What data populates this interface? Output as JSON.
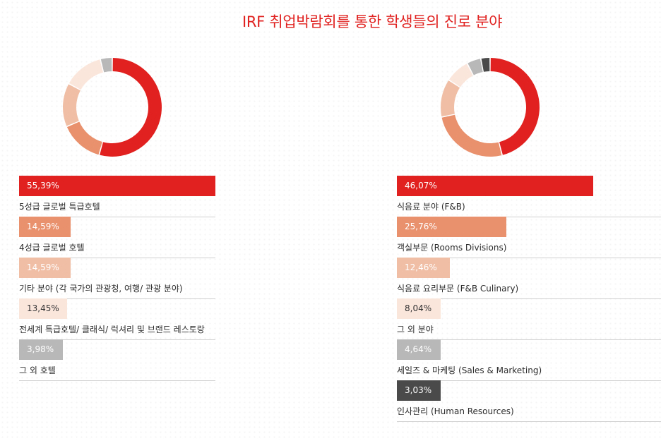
{
  "title": "IRF 취업박람회를 통한 학생들의 진로 분야",
  "colors": {
    "accent": "#e0211f",
    "rule": "#cfcfcf"
  },
  "chart_data": [
    {
      "type": "pie",
      "categories": [
        "5성급 글로벌 특급호텔",
        "4성급 글로벌 호텔",
        "기타 분야 (각 국가의 관광청, 여행/ 관광 분야)",
        "전세계 특급호텔/ 클래식/ 럭셔리 및 브랜드 레스토랑",
        "그 외 호텔"
      ],
      "values": [
        55.39,
        14.59,
        14.59,
        13.45,
        3.98
      ],
      "value_labels": [
        "55,39%",
        "14,59%",
        "14,59%",
        "13,45%",
        "3,98%"
      ],
      "colors": [
        "#e0211f",
        "#e9906c",
        "#f0bea5",
        "#fbe6dc",
        "#b8b8b8"
      ],
      "text_colors": [
        "#ffffff",
        "#ffffff",
        "#ffffff",
        "#333333",
        "#ffffff"
      ]
    },
    {
      "type": "pie",
      "categories": [
        "식음료 분야 (F&B)",
        "객실부문 (Rooms Divisions)",
        "식음료 요리부문 (F&B Culinary)",
        "그 외 분야",
        "세일즈 & 마케팅 (Sales & Marketing)",
        "인사관리 (Human Resources)"
      ],
      "values": [
        46.07,
        25.76,
        12.46,
        8.04,
        4.64,
        3.03
      ],
      "value_labels": [
        "46,07%",
        "25,76%",
        "12,46%",
        "8,04%",
        "4,64%",
        "3,03%"
      ],
      "colors": [
        "#e0211f",
        "#e9906c",
        "#f0bea5",
        "#fbe6dc",
        "#b8b8b8",
        "#4a4a4a"
      ],
      "text_colors": [
        "#ffffff",
        "#ffffff",
        "#ffffff",
        "#333333",
        "#ffffff",
        "#ffffff"
      ]
    }
  ]
}
